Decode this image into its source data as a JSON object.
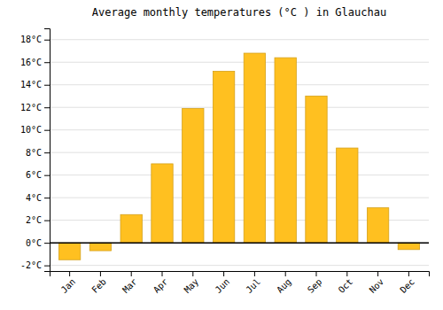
{
  "chart_data": {
    "type": "bar",
    "title": "Average monthly temperatures (°C ) in Glauchau",
    "categories": [
      "Jan",
      "Feb",
      "Mar",
      "Apr",
      "May",
      "Jun",
      "Jul",
      "Aug",
      "Sep",
      "Oct",
      "Nov",
      "Dec"
    ],
    "values": [
      -1.5,
      -0.7,
      2.5,
      7.0,
      11.9,
      15.2,
      16.8,
      16.4,
      13.0,
      8.4,
      3.1,
      -0.6
    ],
    "color": "#FFC020",
    "ylim": [
      -2.5,
      19.0
    ],
    "yticks": [
      {
        "value": -2,
        "label": "-2°C"
      },
      {
        "value": 0,
        "label": "0°C"
      },
      {
        "value": 2,
        "label": "2°C"
      },
      {
        "value": 4,
        "label": "4°C"
      },
      {
        "value": 6,
        "label": "6°C"
      },
      {
        "value": 8,
        "label": "8°C"
      },
      {
        "value": 10,
        "label": "10°C"
      },
      {
        "value": 12,
        "label": "12°C"
      },
      {
        "value": 14,
        "label": "14°C"
      },
      {
        "value": 16,
        "label": "16°C"
      },
      {
        "value": 18,
        "label": "18°C"
      }
    ],
    "grid": true
  }
}
